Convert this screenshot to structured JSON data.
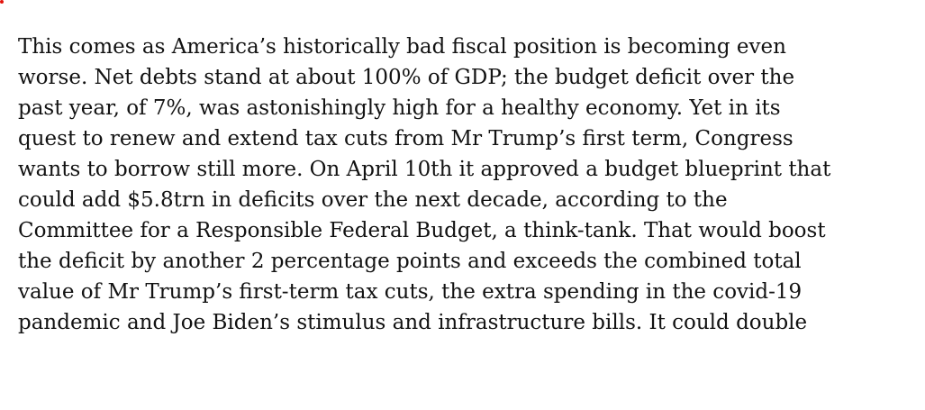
{
  "article": {
    "lines": [
      "This comes as America’s historically bad fiscal position is becoming even",
      "worse. Net debts stand at about 100% of GDP; the budget deficit over the",
      "past year, of 7%, was astonishingly high for a healthy economy. Yet in its",
      "quest to renew and extend tax cuts from Mr Trump’s first term, Congress",
      "wants to borrow still more. On April 10th it approved a budget blueprint that",
      "could add $5.8trn in deficits over the next decade, according to the",
      "Committee for a Responsible Federal Budget, a think-tank. That would boost",
      "the deficit by another 2 percentage points and exceeds the combined total",
      "value of Mr Trump’s first-term tax cuts, the extra spending in the covid-19",
      "pandemic and Joe Biden’s stimulus and infrastructure bills. It could double"
    ]
  },
  "colors": {
    "accent": "#e3120b",
    "text": "#121212"
  }
}
